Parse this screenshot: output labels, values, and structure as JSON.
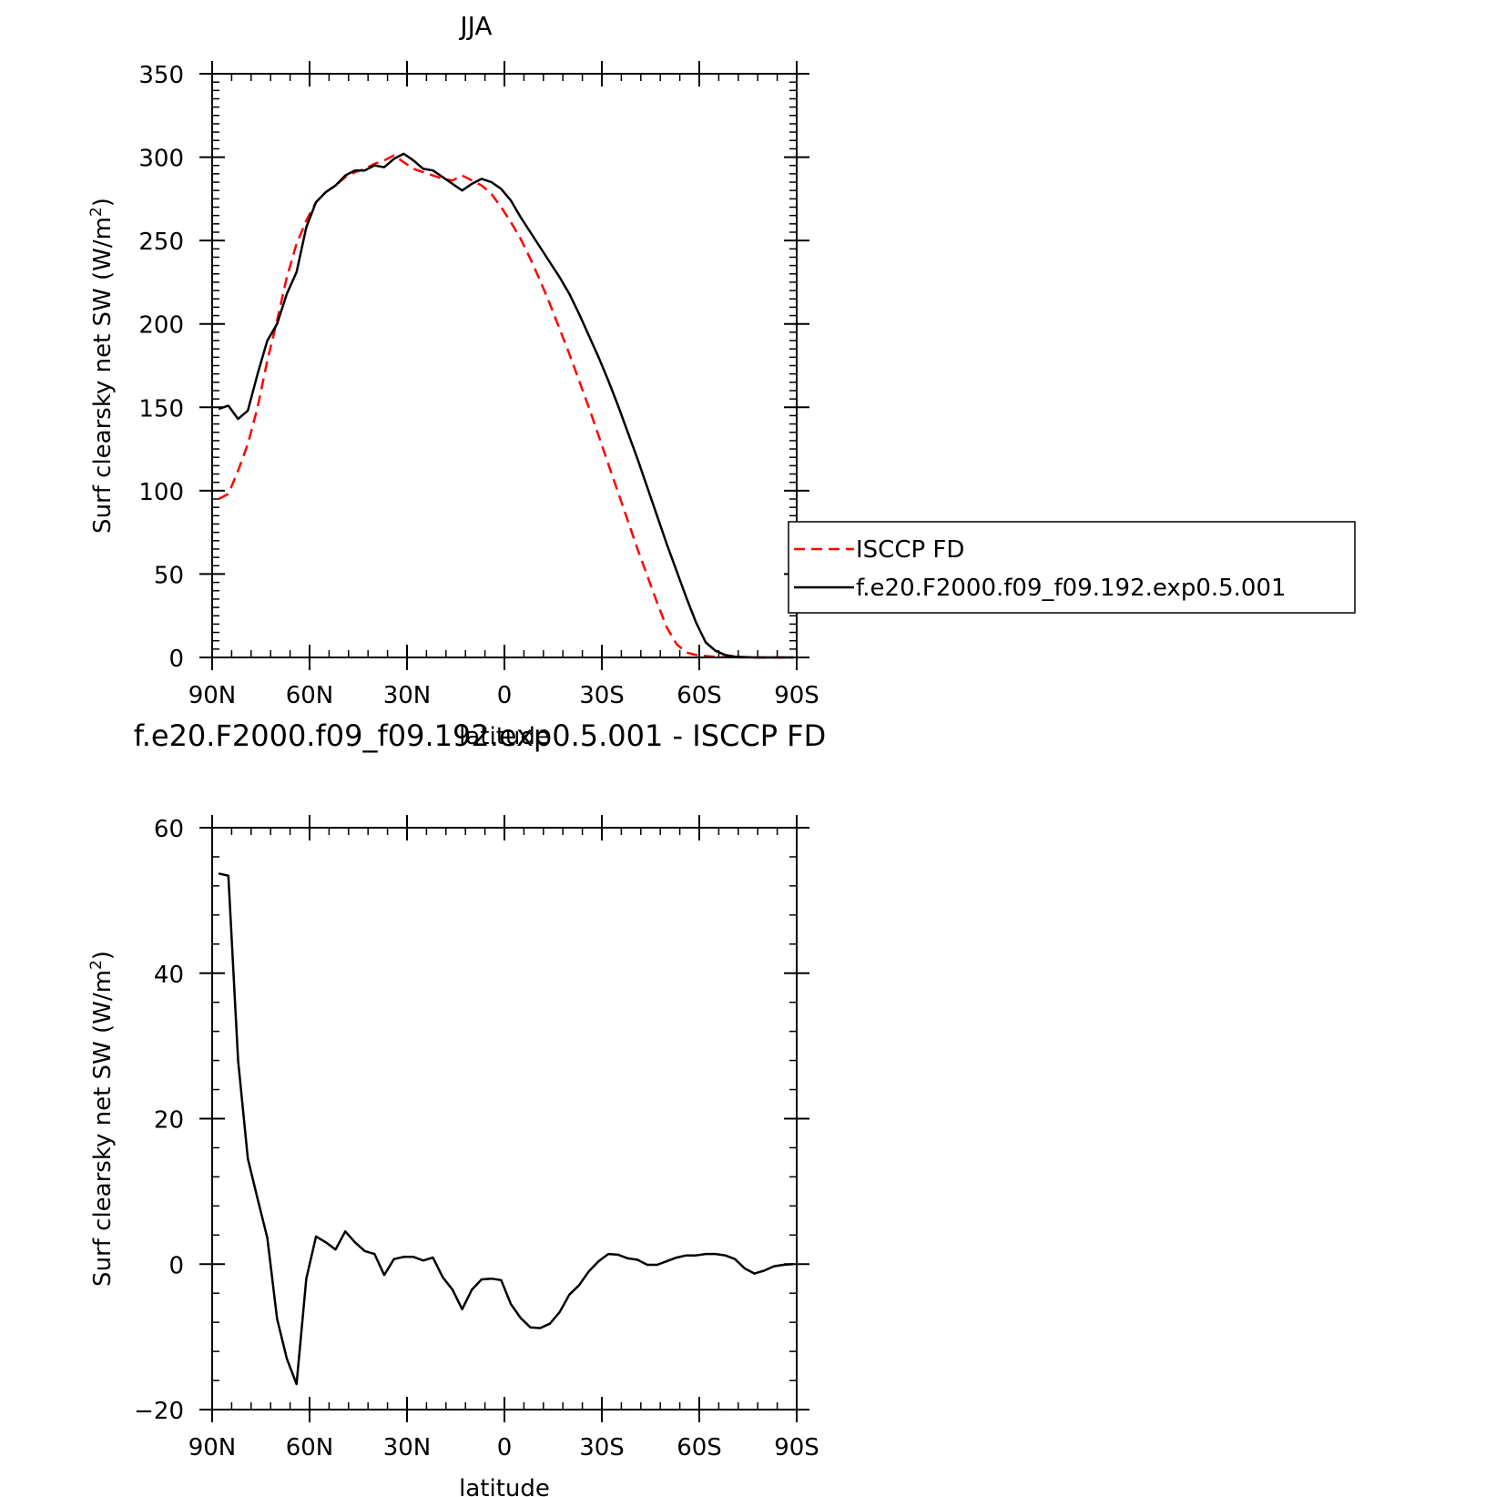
{
  "chart_data": [
    {
      "type": "line",
      "title": "JJA",
      "xlabel": "latitude",
      "ylabel": "Surf clearsky net SW (W/m²)",
      "ylabel_text": "Surf clearsky net SW (W/m",
      "ylabel_sup": "2",
      "ylabel_end": ")",
      "xlim": [
        90,
        -90
      ],
      "ylim": [
        0,
        350
      ],
      "x_ticks": [
        90,
        60,
        30,
        0,
        -30,
        -60,
        -90
      ],
      "x_tick_labels": [
        "90N",
        "60N",
        "30N",
        "0",
        "30S",
        "60S",
        "90S"
      ],
      "y_ticks": [
        0,
        50,
        100,
        150,
        200,
        250,
        300,
        350
      ],
      "y_tick_labels": [
        "0",
        "50",
        "100",
        "150",
        "200",
        "250",
        "300",
        "350"
      ],
      "grid": false,
      "legend": {
        "position": "right",
        "entries": [
          {
            "label": "ISCCP FD",
            "series": 0
          },
          {
            "label": "f.e20.F2000.f09_f09.192.exp0.5.001",
            "series": 1
          }
        ]
      },
      "series": [
        {
          "name": "ISCCP FD",
          "color": "#ff0000",
          "dash": "dashed",
          "x": [
            88,
            85,
            82,
            79,
            76,
            73,
            70,
            67,
            64,
            61,
            58,
            55,
            52,
            49,
            46,
            43,
            40,
            37,
            34,
            31,
            28,
            25,
            22,
            19,
            16,
            13,
            10,
            7,
            4,
            1,
            -2,
            -5,
            -8,
            -11,
            -14,
            -17,
            -20,
            -23,
            -26,
            -29,
            -32,
            -35,
            -38,
            -41,
            -44,
            -47,
            -50,
            -53,
            -56,
            -59,
            -62,
            -65,
            -68,
            -71,
            -74,
            -77,
            -80,
            -83,
            -86,
            -89
          ],
          "y": [
            95,
            98,
            112,
            128,
            150,
            178,
            202,
            228,
            248,
            262,
            273,
            279,
            283,
            288,
            291,
            293,
            296,
            298,
            301,
            297,
            293,
            291,
            289,
            287,
            286,
            289,
            286,
            283,
            278,
            270,
            261,
            251,
            239,
            226,
            212,
            197,
            182,
            166,
            150,
            133,
            116,
            99,
            82,
            65,
            49,
            33,
            18,
            8,
            3,
            1.5,
            0.8,
            0.4,
            0.2,
            0,
            0,
            0,
            0,
            0,
            0,
            0
          ],
          "y_extend": "values at x<=-71 continue at 0"
        },
        {
          "name": "f.e20.F2000.f09_f09.192.exp0.5.001",
          "color": "#000000",
          "dash": "solid",
          "x": [
            88,
            85,
            82,
            79,
            76,
            73,
            70,
            67,
            64,
            61,
            58,
            55,
            52,
            49,
            46,
            43,
            40,
            37,
            34,
            31,
            28,
            25,
            22,
            19,
            16,
            13,
            10,
            7,
            4,
            1,
            -2,
            -5,
            -8,
            -11,
            -14,
            -17,
            -20,
            -23,
            -26,
            -29,
            -32,
            -35,
            -38,
            -41,
            -44,
            -47,
            -50,
            -53,
            -56,
            -59,
            -62,
            -65,
            -68,
            -71,
            -74,
            -77,
            -80,
            -83,
            -86,
            -89
          ],
          "y": [
            149,
            151,
            143,
            148,
            170,
            190,
            200,
            218,
            231,
            258,
            273,
            279,
            283,
            289,
            292,
            292,
            295,
            294,
            299,
            302,
            298,
            293,
            292,
            288,
            284,
            280,
            284,
            287,
            285,
            281,
            274,
            264,
            255,
            246,
            237,
            228,
            218,
            206,
            193,
            180,
            166,
            151,
            135,
            119,
            102,
            85,
            68,
            52,
            36,
            21,
            9,
            4,
            1.5,
            0.5,
            0.2,
            0,
            0,
            0,
            0,
            0
          ]
        }
      ]
    },
    {
      "type": "line",
      "title": "f.e20.F2000.f09_f09.192.exp0.5.001 - ISCCP FD",
      "xlabel": "latitude",
      "ylabel": "Surf clearsky net SW (W/m²)",
      "ylabel_text": "Surf clearsky net SW (W/m",
      "ylabel_sup": "2",
      "ylabel_end": ")",
      "xlim": [
        90,
        -90
      ],
      "ylim": [
        -20,
        60
      ],
      "x_ticks": [
        90,
        60,
        30,
        0,
        -30,
        -60,
        -90
      ],
      "x_tick_labels": [
        "90N",
        "60N",
        "30N",
        "0",
        "30S",
        "60S",
        "90S"
      ],
      "y_ticks": [
        -20,
        0,
        20,
        40,
        60
      ],
      "y_tick_labels": [
        "−20",
        "0",
        "20",
        "40",
        "60"
      ],
      "grid": false,
      "series": [
        {
          "color": "#000000",
          "dash": "solid",
          "x": [
            88,
            85,
            82,
            79,
            76,
            73,
            70,
            67,
            64,
            61,
            58,
            55,
            52,
            49,
            46,
            43,
            40,
            37,
            34,
            31,
            28,
            25,
            22,
            19,
            16,
            13,
            10,
            7,
            4,
            1,
            -2,
            -5,
            -8,
            -11,
            -14,
            -17,
            -20,
            -23,
            -26,
            -29,
            -32,
            -35,
            -38,
            -41,
            -44,
            -47,
            -50,
            -53,
            -56,
            -59,
            -62,
            -65,
            -68,
            -71,
            -74,
            -77,
            -80,
            -83,
            -86,
            -89
          ],
          "y": [
            53.7,
            53.4,
            28,
            14.5,
            9,
            3.6,
            -7.5,
            -13,
            -16.5,
            -2,
            3.8,
            3,
            2,
            4.5,
            3,
            1.8,
            1.4,
            -1.5,
            0.7,
            1,
            1,
            0.5,
            0.9,
            -1.8,
            -3.5,
            -6.2,
            -3.5,
            -2.1,
            -2,
            -2.2,
            -5.5,
            -7.4,
            -8.7,
            -8.8,
            -8.2,
            -6.6,
            -4.2,
            -2.9,
            -1,
            0.4,
            1.4,
            1.3,
            0.8,
            0.6,
            -0.1,
            -0.1,
            0.4,
            0.9,
            1.2,
            1.2,
            1.4,
            1.4,
            1.2,
            0.7,
            -0.6,
            -1.3,
            -0.9,
            -0.3,
            -0.1,
            0
          ]
        }
      ]
    }
  ]
}
